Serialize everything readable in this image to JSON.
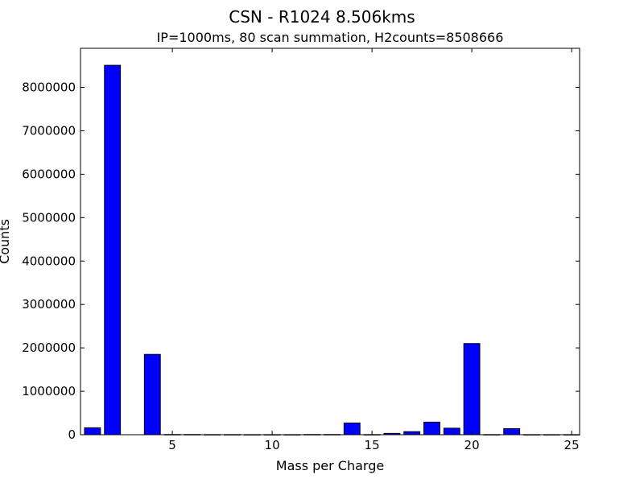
{
  "chart_data": {
    "type": "bar",
    "title": "CSN - R1024 8.506kms",
    "subtitle": "IP=1000ms, 80 scan summation, H2counts=8508666",
    "xlabel": "Mass per Charge",
    "ylabel": "Counts",
    "xlim": [
      0.4,
      25.4
    ],
    "ylim": [
      0,
      8900000
    ],
    "xticks": [
      5,
      10,
      15,
      20,
      25
    ],
    "xtick_labels": [
      "5",
      "10",
      "15",
      "20",
      "25"
    ],
    "yticks": [
      0,
      1000000,
      2000000,
      3000000,
      4000000,
      5000000,
      6000000,
      7000000,
      8000000
    ],
    "ytick_labels": [
      "0",
      "1000000",
      "2000000",
      "3000000",
      "4000000",
      "5000000",
      "6000000",
      "7000000",
      "8000000"
    ],
    "bar_width": 0.8,
    "x": [
      1,
      2,
      3,
      4,
      5,
      6,
      7,
      8,
      9,
      10,
      11,
      12,
      13,
      14,
      15,
      16,
      17,
      18,
      19,
      20,
      21,
      22,
      23,
      24,
      25
    ],
    "values": [
      160000,
      8508666,
      0,
      1850000,
      5000,
      5000,
      3000,
      3000,
      2000,
      2000,
      2000,
      5000,
      5000,
      270000,
      3000,
      30000,
      70000,
      290000,
      150000,
      2100000,
      3000,
      140000,
      2000,
      2000,
      2000
    ],
    "grid": false,
    "legend": "none",
    "colors": {
      "bar": "#0000ff",
      "edge": "#000000"
    }
  }
}
